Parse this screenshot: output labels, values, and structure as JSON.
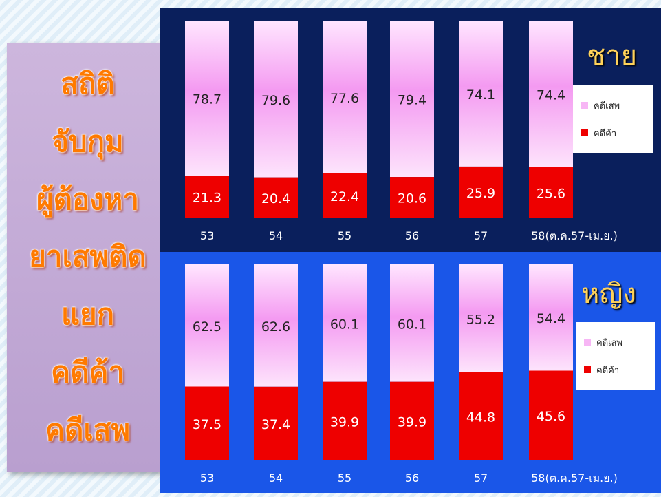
{
  "title_lines": [
    "สถิติ",
    "จับกุม",
    "ผู้ต้องหา",
    "ยาเสพติด",
    "แยก",
    "คดีค้า",
    "คดีเสพ"
  ],
  "colors": {
    "use": "#f7b6f5",
    "trade": "#ee0000",
    "male_bg": "#0a1f5c",
    "female_bg": "#1a56e8",
    "title_text": "#ff7a00",
    "gender_text": "#ffd25a"
  },
  "chart_data": [
    {
      "type": "bar",
      "stacked": true,
      "percent": true,
      "title": "ชาย",
      "categories": [
        "53",
        "54",
        "55",
        "56",
        "57",
        "58(ต.ค.57-เม.ย.)"
      ],
      "series": [
        {
          "name": "คดีค้า",
          "values": [
            21.3,
            20.4,
            22.4,
            20.6,
            25.9,
            25.6
          ]
        },
        {
          "name": "คดีเสพ",
          "values": [
            78.7,
            79.6,
            77.6,
            79.4,
            74.1,
            74.4
          ]
        }
      ],
      "ylim": [
        0,
        100
      ],
      "legend": "right",
      "grid": false
    },
    {
      "type": "bar",
      "stacked": true,
      "percent": true,
      "title": "หญิง",
      "categories": [
        "53",
        "54",
        "55",
        "56",
        "57",
        "58(ต.ค.57-เม.ย.)"
      ],
      "series": [
        {
          "name": "คดีค้า",
          "values": [
            37.5,
            37.4,
            39.9,
            39.9,
            44.8,
            45.6
          ]
        },
        {
          "name": "คดีเสพ",
          "values": [
            62.5,
            62.6,
            60.1,
            60.1,
            55.2,
            54.4
          ]
        }
      ],
      "ylim": [
        0,
        100
      ],
      "legend": "right",
      "grid": false
    }
  ]
}
